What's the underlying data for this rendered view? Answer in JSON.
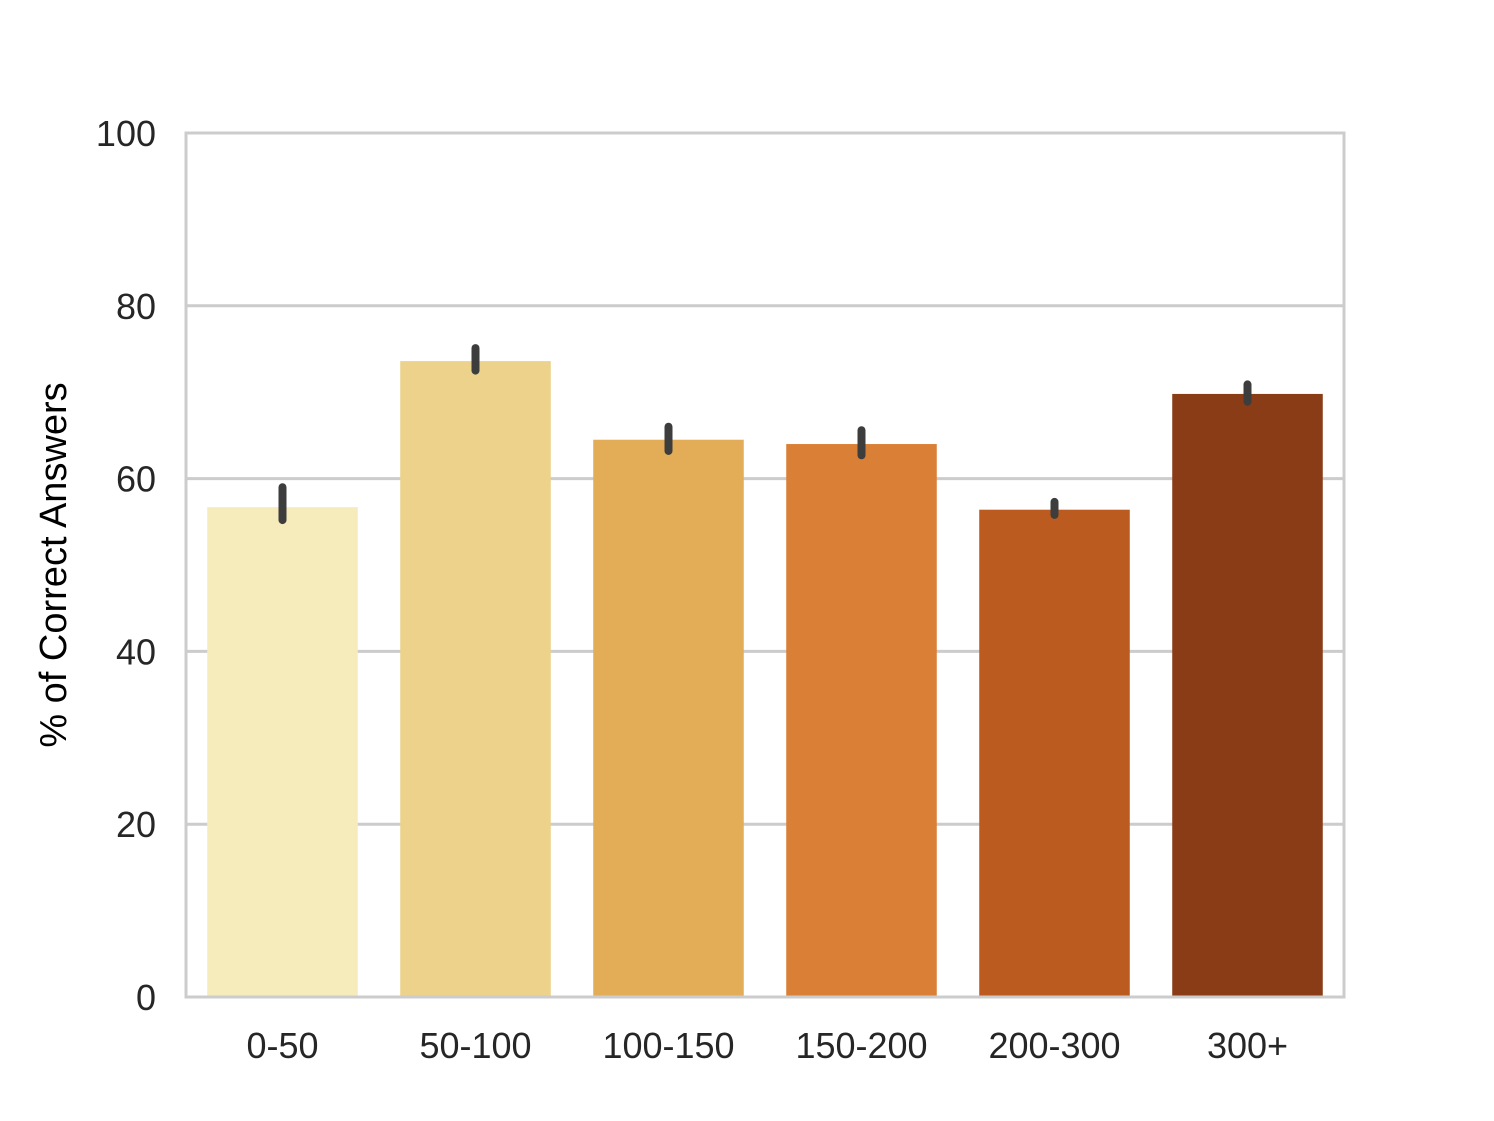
{
  "chart_data": {
    "type": "bar",
    "title": "",
    "xlabel": "",
    "ylabel": "% of Correct Answers",
    "categories": [
      "0-50",
      "50-100",
      "100-150",
      "150-200",
      "200-300",
      "300+"
    ],
    "values": [
      56.7,
      73.6,
      64.5,
      64.0,
      56.4,
      69.8
    ],
    "error_bars": [
      {
        "low": 55.2,
        "high": 59.0
      },
      {
        "low": 72.5,
        "high": 75.1
      },
      {
        "low": 63.2,
        "high": 66.0
      },
      {
        "low": 62.7,
        "high": 65.6
      },
      {
        "low": 55.8,
        "high": 57.3
      },
      {
        "low": 68.9,
        "high": 70.9
      }
    ],
    "colors": [
      "#f6ecbb",
      "#edd28b",
      "#e3ad57",
      "#d98036",
      "#bb5b20",
      "#8a3c17"
    ],
    "ylim": [
      0,
      100
    ],
    "yticks": [
      0,
      20,
      40,
      60,
      80,
      100
    ],
    "grid": true,
    "grid_axis": "y",
    "grid_color": "#cccccc",
    "error_color": "#3d3d3d"
  }
}
